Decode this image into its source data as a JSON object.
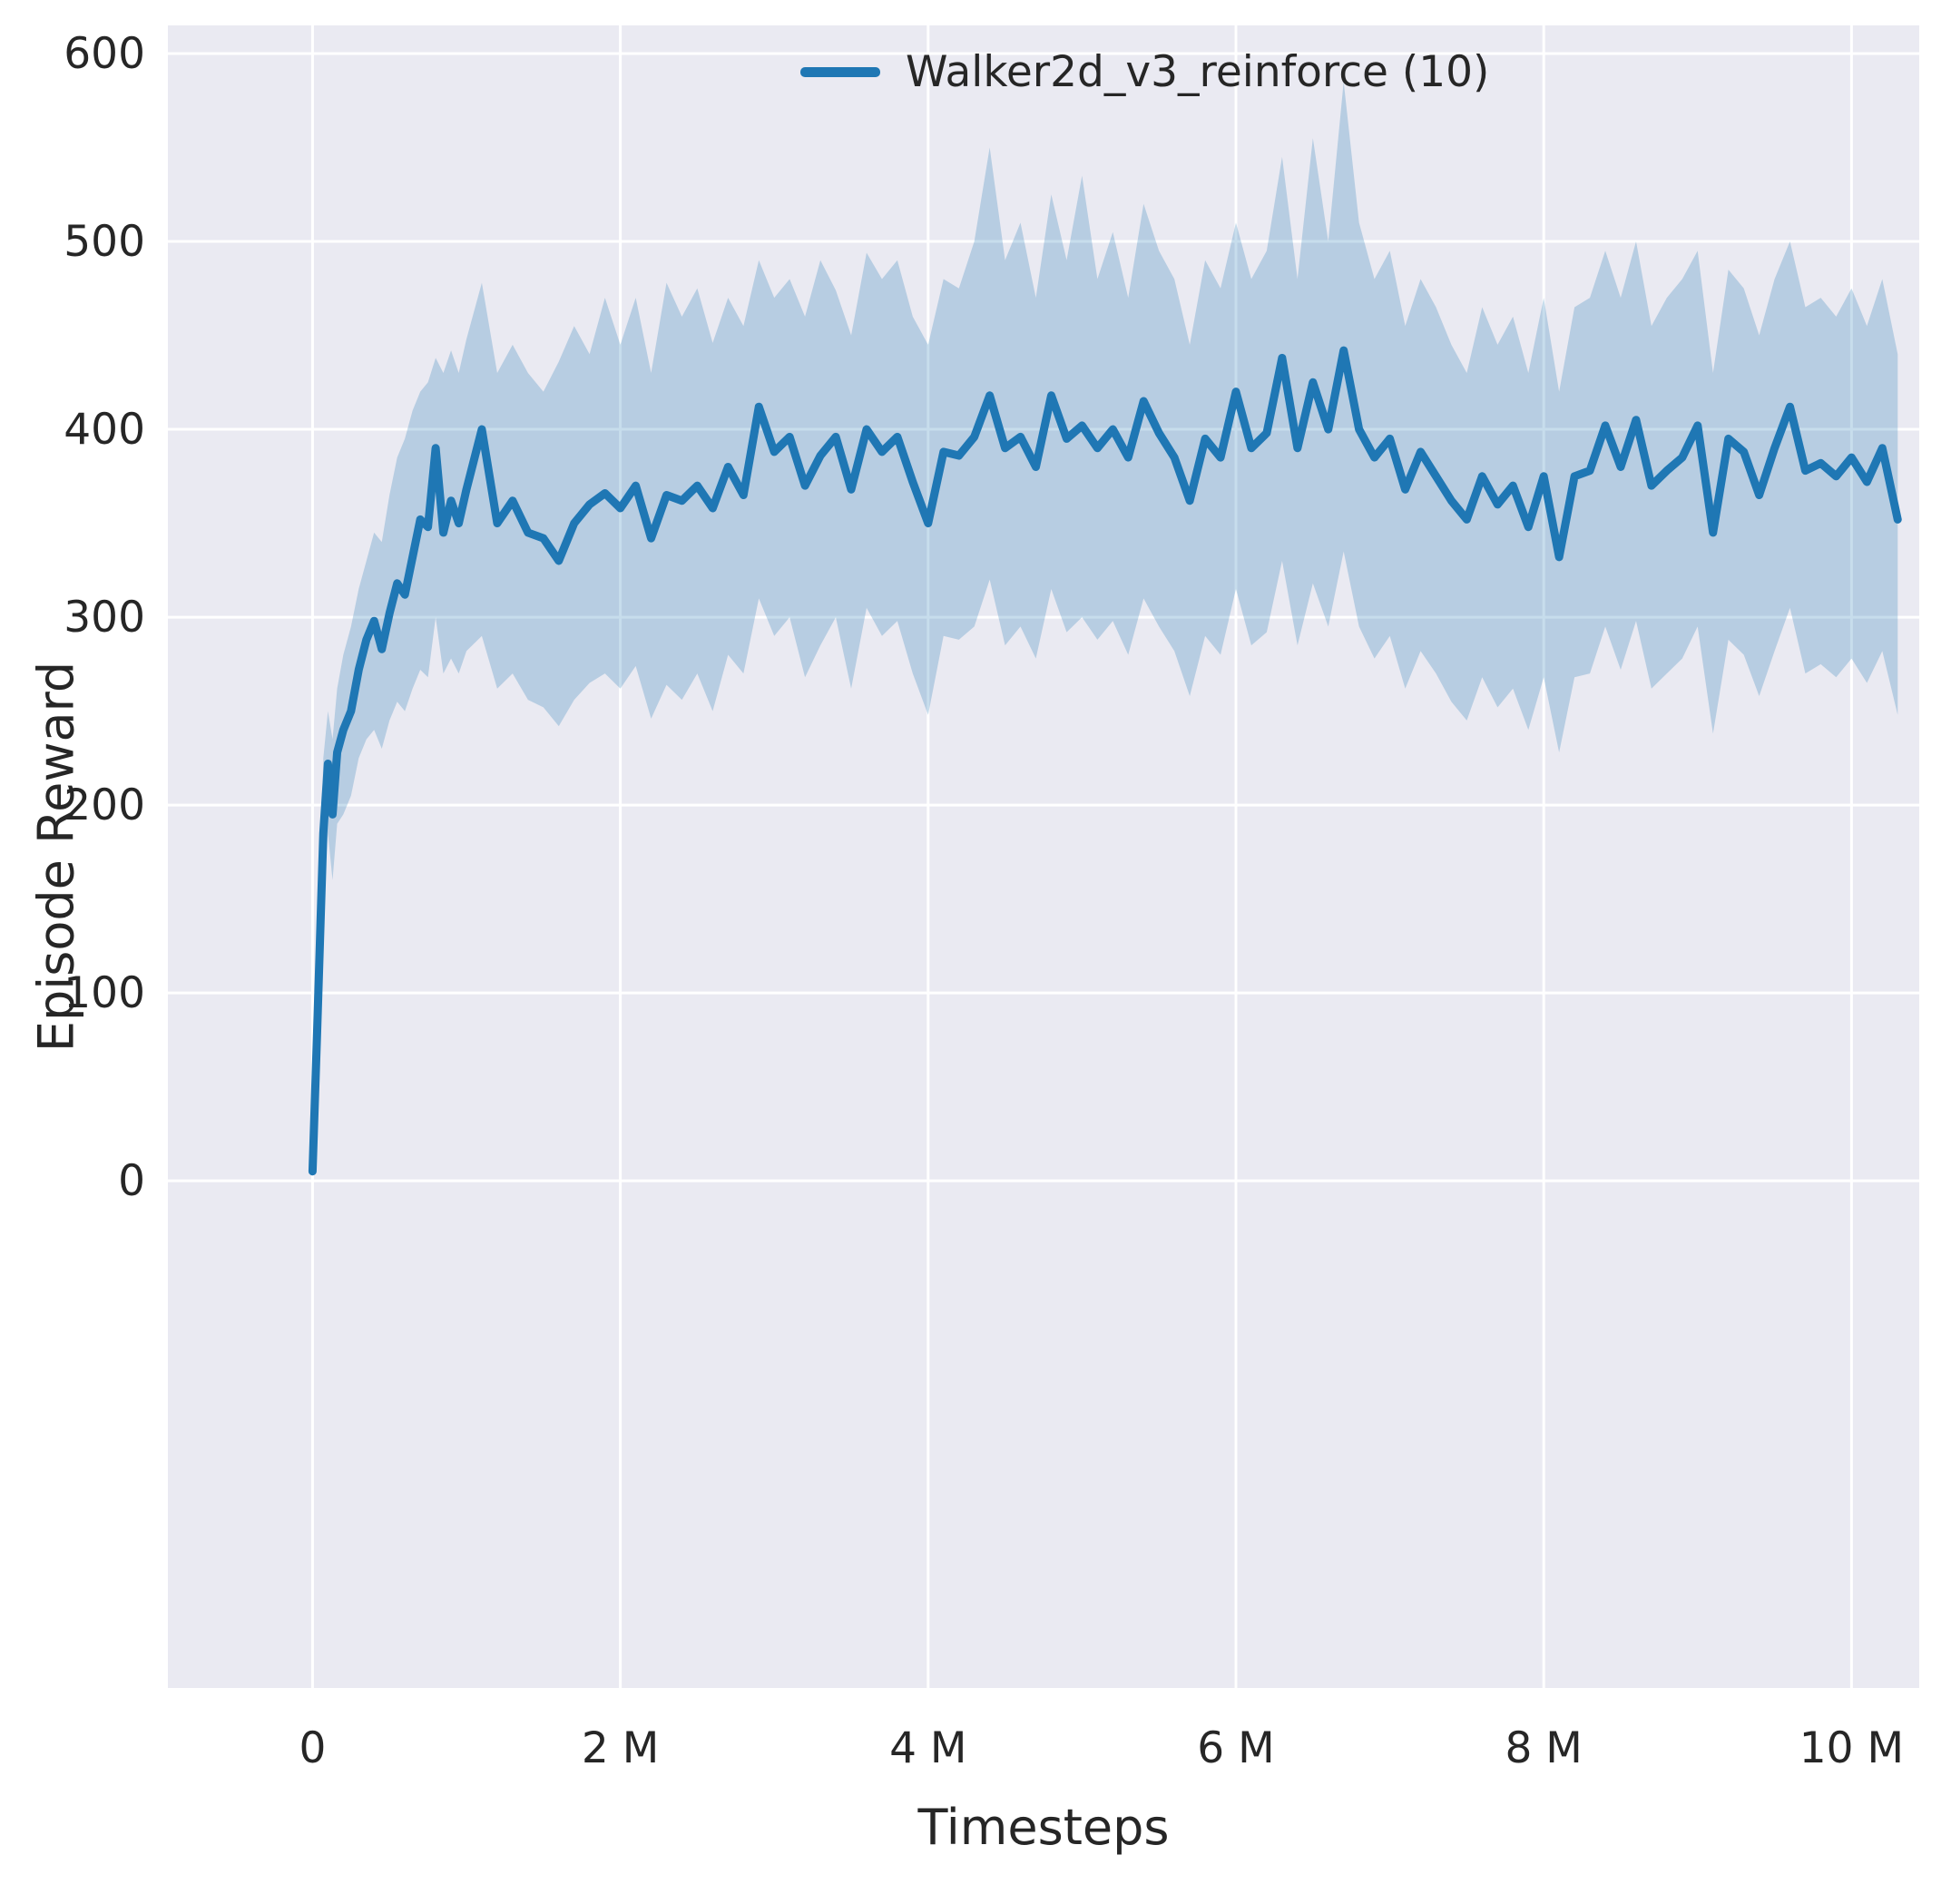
{
  "figure": {
    "background": "#ffffff"
  },
  "chart_data": {
    "type": "line",
    "title": "",
    "xlabel": "Timesteps",
    "ylabel": "Episode Reward",
    "xlim": [
      -0.94,
      10.44
    ],
    "ylim": [
      -270,
      615
    ],
    "grid": true,
    "legend_position": "upper right",
    "xticks": {
      "values": [
        0,
        2,
        4,
        6,
        8,
        10
      ],
      "labels": [
        "0",
        "2 M",
        "4 M",
        "6 M",
        "8 M",
        "10 M"
      ]
    },
    "yticks": {
      "values": [
        0,
        100,
        200,
        300,
        400,
        500,
        600
      ],
      "labels": [
        "0",
        "100",
        "200",
        "300",
        "400",
        "500",
        "600"
      ]
    },
    "colors": {
      "line": "#1f77b4",
      "band": "rgba(31,119,180,0.25)",
      "plot_bg": "#eaeaf2",
      "grid": "#ffffff",
      "text": "#262626"
    },
    "series": [
      {
        "name": "Walker2d_v3_reinforce (10)",
        "x": [
          0,
          0.03,
          0.07,
          0.1,
          0.13,
          0.16,
          0.2,
          0.25,
          0.3,
          0.35,
          0.4,
          0.45,
          0.5,
          0.55,
          0.6,
          0.65,
          0.7,
          0.75,
          0.8,
          0.85,
          0.9,
          0.95,
          1.0,
          1.1,
          1.2,
          1.3,
          1.4,
          1.5,
          1.6,
          1.7,
          1.8,
          1.9,
          2.0,
          2.1,
          2.2,
          2.3,
          2.4,
          2.5,
          2.6,
          2.7,
          2.8,
          2.9,
          3.0,
          3.1,
          3.2,
          3.3,
          3.4,
          3.5,
          3.6,
          3.7,
          3.8,
          3.9,
          4.0,
          4.1,
          4.2,
          4.3,
          4.4,
          4.5,
          4.6,
          4.7,
          4.8,
          4.9,
          5.0,
          5.1,
          5.2,
          5.3,
          5.4,
          5.5,
          5.6,
          5.7,
          5.8,
          5.9,
          6.0,
          6.1,
          6.2,
          6.3,
          6.4,
          6.5,
          6.6,
          6.7,
          6.8,
          6.9,
          7.0,
          7.1,
          7.2,
          7.3,
          7.4,
          7.5,
          7.6,
          7.7,
          7.8,
          7.9,
          8.0,
          8.1,
          8.2,
          8.3,
          8.4,
          8.5,
          8.6,
          8.7,
          8.8,
          8.9,
          9.0,
          9.1,
          9.2,
          9.3,
          9.4,
          9.5,
          9.6,
          9.7,
          9.8,
          9.9,
          10.0,
          10.1,
          10.2,
          10.3
        ],
        "mean": [
          5,
          80,
          185,
          222,
          195,
          228,
          240,
          250,
          272,
          288,
          298,
          283,
          302,
          318,
          312,
          332,
          352,
          348,
          390,
          345,
          362,
          350,
          368,
          400,
          350,
          362,
          345,
          342,
          330,
          350,
          360,
          366,
          358,
          370,
          342,
          365,
          362,
          370,
          358,
          380,
          365,
          412,
          388,
          396,
          370,
          386,
          396,
          368,
          400,
          388,
          396,
          372,
          350,
          388,
          386,
          396,
          418,
          390,
          396,
          380,
          418,
          395,
          402,
          390,
          400,
          385,
          415,
          398,
          385,
          362,
          395,
          385,
          420,
          390,
          398,
          438,
          390,
          425,
          400,
          442,
          400,
          385,
          395,
          368,
          388,
          375,
          362,
          352,
          375,
          360,
          370,
          348,
          375,
          332,
          375,
          378,
          402,
          380,
          405,
          370,
          378,
          385,
          402,
          345,
          395,
          388,
          365,
          390,
          412,
          378,
          382,
          375,
          385,
          372,
          390,
          352
        ],
        "lower": [
          3,
          60,
          150,
          185,
          160,
          190,
          195,
          205,
          225,
          235,
          240,
          230,
          245,
          255,
          250,
          262,
          272,
          268,
          300,
          270,
          278,
          270,
          282,
          290,
          262,
          270,
          256,
          252,
          242,
          256,
          265,
          270,
          262,
          274,
          246,
          264,
          256,
          270,
          250,
          280,
          270,
          310,
          290,
          300,
          268,
          285,
          300,
          262,
          305,
          290,
          298,
          270,
          248,
          290,
          288,
          295,
          320,
          285,
          295,
          278,
          315,
          292,
          300,
          288,
          298,
          280,
          310,
          295,
          282,
          258,
          290,
          280,
          315,
          285,
          292,
          330,
          285,
          318,
          295,
          335,
          295,
          278,
          290,
          262,
          282,
          270,
          255,
          245,
          268,
          252,
          262,
          240,
          268,
          228,
          268,
          270,
          295,
          272,
          298,
          262,
          270,
          278,
          295,
          238,
          288,
          280,
          258,
          282,
          305,
          270,
          275,
          268,
          278,
          265,
          282,
          248
        ],
        "upper": [
          8,
          105,
          225,
          250,
          235,
          262,
          280,
          295,
          315,
          330,
          345,
          340,
          365,
          385,
          395,
          410,
          420,
          425,
          438,
          430,
          442,
          430,
          448,
          478,
          430,
          445,
          430,
          420,
          436,
          455,
          440,
          470,
          445,
          470,
          430,
          478,
          460,
          475,
          446,
          470,
          455,
          490,
          470,
          480,
          460,
          490,
          474,
          450,
          494,
          480,
          490,
          460,
          445,
          480,
          475,
          500,
          550,
          490,
          510,
          470,
          525,
          490,
          535,
          480,
          505,
          470,
          520,
          495,
          480,
          445,
          490,
          475,
          510,
          480,
          495,
          545,
          480,
          555,
          500,
          585,
          510,
          480,
          495,
          455,
          480,
          465,
          445,
          430,
          465,
          445,
          460,
          430,
          470,
          420,
          465,
          470,
          495,
          470,
          500,
          455,
          470,
          480,
          495,
          430,
          485,
          475,
          450,
          480,
          500,
          465,
          470,
          460,
          475,
          455,
          480,
          440
        ]
      }
    ]
  }
}
